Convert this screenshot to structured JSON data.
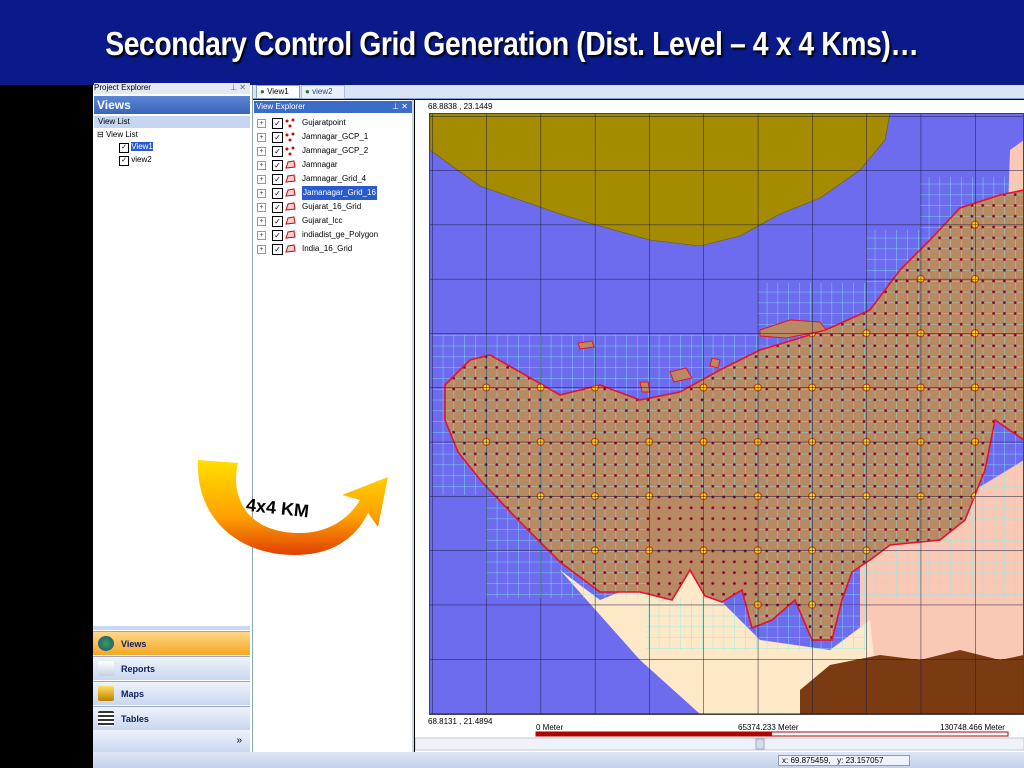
{
  "slide_title": "Secondary Control Grid Generation (Dist. Level – 4 x 4 Kms)…",
  "project_explorer": {
    "title": "Project Explorer",
    "header": "Views",
    "subheader": "View List",
    "tree": {
      "root": "View List",
      "items": [
        "View1",
        "view2"
      ]
    }
  },
  "nav_buttons": [
    "Views",
    "Reports",
    "Maps",
    "Tables"
  ],
  "tabs": [
    "View1",
    "view2"
  ],
  "view_explorer": {
    "title": "View Explorer",
    "layers": [
      "Gujaratpoint",
      "Jamnagar_GCP_1",
      "Jamnagar_GCP_2",
      "Jamnagar",
      "Jamnagar_Grid_4",
      "Jamanagar_Grid_16",
      "Gujarat_16_Grid",
      "Gujarat_lcc",
      "indiadist_ge_Polygon",
      "India_16_Grid"
    ]
  },
  "map": {
    "top_coord": "68.8838 , 23.1449",
    "bottom_coord": "68.8131 , 21.4894",
    "scale_labels": [
      "0 Meter",
      "65374.233 Meter",
      "130748.466 Meter"
    ]
  },
  "status": {
    "x": "x: 69.875459,",
    "y": "y: 23.157057"
  },
  "annotation": "4x4 KM"
}
